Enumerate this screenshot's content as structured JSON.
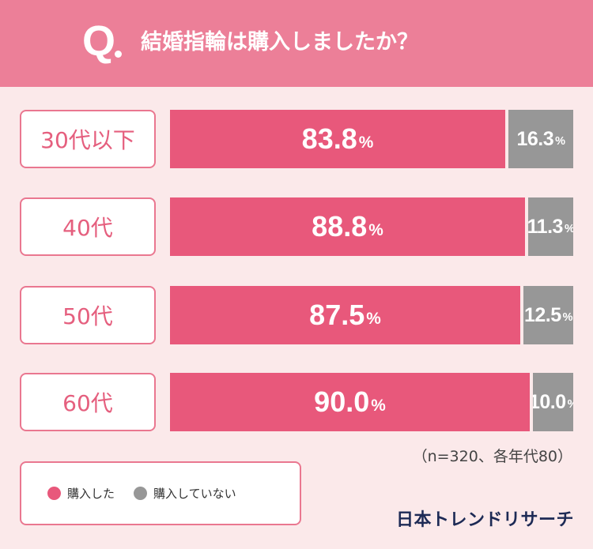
{
  "header": {
    "q_mark": "Q",
    "title": "結婚指輪は購入しましたか？"
  },
  "chart_data": {
    "type": "bar",
    "stacked": true,
    "orientation": "horizontal",
    "unit": "%",
    "categories": [
      "30代以下",
      "40代",
      "50代",
      "60代"
    ],
    "series": [
      {
        "name": "購入した",
        "values": [
          83.8,
          88.8,
          87.5,
          90.0
        ],
        "color": "#e8587b"
      },
      {
        "name": "購入していない",
        "values": [
          16.3,
          11.3,
          12.5,
          10.0
        ],
        "color": "#979797"
      }
    ],
    "value_labels": {
      "yes": [
        "83.8",
        "88.8",
        "87.5",
        "90.0"
      ],
      "no": [
        "16.3",
        "11.3",
        "12.5",
        "10.0"
      ]
    },
    "xlim": [
      0,
      100
    ],
    "legend_position": "bottom-left",
    "grid": false
  },
  "note": "（n=320、各年代80）",
  "legend": {
    "items": [
      {
        "label": "購入した",
        "color": "#e8587b"
      },
      {
        "label": "購入していない",
        "color": "#979797"
      }
    ]
  },
  "brand": "日本トレンドリサーチ",
  "colors": {
    "header": "#ec7f98",
    "background": "#fbe9ea",
    "accent": "#e8587b",
    "gray": "#979797"
  }
}
